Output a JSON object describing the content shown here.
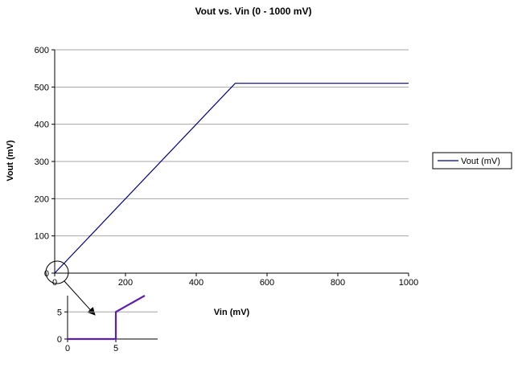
{
  "chart_data": [
    {
      "type": "line",
      "title": "Vout vs. Vin (0 - 1000 mV)",
      "xlabel": "Vin (mV)",
      "ylabel": "Vout (mV)",
      "xlim": [
        0,
        1000
      ],
      "ylim": [
        0,
        600
      ],
      "x_ticks": [
        0,
        200,
        400,
        600,
        800,
        1000
      ],
      "y_ticks": [
        0,
        100,
        200,
        300,
        400,
        500,
        600
      ],
      "grid": true,
      "legend_placement": "right",
      "series": [
        {
          "name": "Vout (mV)",
          "color": "#000080",
          "x": [
            0,
            510,
            1000
          ],
          "y": [
            0,
            510,
            510
          ]
        }
      ]
    },
    {
      "type": "line",
      "title": "",
      "xlabel": "",
      "ylabel": "",
      "xlim": [
        0,
        8
      ],
      "ylim": [
        0,
        8
      ],
      "x_ticks": [
        0,
        5
      ],
      "y_ticks": [
        0,
        5
      ],
      "grid": true,
      "series": [
        {
          "color": "#5b1fb0",
          "x": [
            0,
            5,
            5,
            8
          ],
          "y": [
            0,
            0,
            5,
            8
          ]
        }
      ]
    }
  ]
}
